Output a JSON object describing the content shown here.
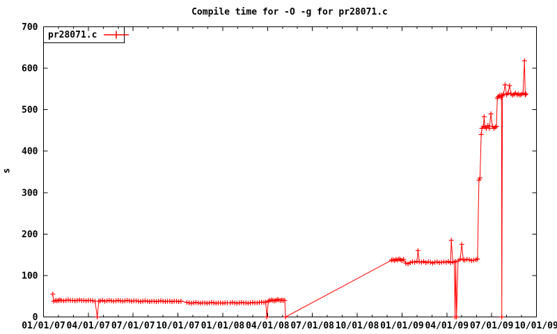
{
  "title": "Compile time for -O -g for pr28071.c",
  "legend": {
    "series_label": "pr28071.c"
  },
  "axes": {
    "y_label": "s",
    "y_ticks": [
      0,
      100,
      200,
      300,
      400,
      500,
      600,
      700
    ],
    "x_ticks": [
      "01/01/07",
      "04/01/07",
      "07/01/07",
      "10/01/07",
      "01/01/08",
      "04/01/08",
      "07/01/08",
      "10/01/08",
      "01/01/09",
      "04/01/09",
      "07/01/09",
      "10/01/09"
    ],
    "x_minor_ticks_per_interval": 2,
    "y_range": [
      0,
      700
    ],
    "grid": false
  },
  "colors": {
    "series": "#ff0000",
    "axis": "#000000",
    "text": "#000000",
    "background": "#ffffff"
  },
  "chart_data": {
    "type": "line",
    "title": "Compile time for -O -g for pr28071.c",
    "xlabel": "",
    "ylabel": "s",
    "ylim": [
      0,
      700
    ],
    "x_unit": "months since 2007-01-01 (0 = 01/01/07, 33 = 10/01/09)",
    "x_tick_labels": [
      "01/01/07",
      "04/01/07",
      "07/01/07",
      "10/01/07",
      "01/01/08",
      "04/01/08",
      "07/01/08",
      "10/01/08",
      "01/01/09",
      "04/01/09",
      "07/01/09",
      "10/01/09"
    ],
    "legend_position": "top-left-inside-box",
    "series": [
      {
        "name": "pr28071.c",
        "color": "#ff0000",
        "style": "linespoints",
        "marker": "plus",
        "points": [
          [
            0.62,
            55
          ],
          [
            0.68,
            38
          ],
          [
            0.8,
            40
          ],
          [
            0.9,
            39
          ],
          [
            1.0,
            40
          ],
          [
            1.1,
            41
          ],
          [
            1.2,
            40
          ],
          [
            1.35,
            39
          ],
          [
            1.5,
            40
          ],
          [
            1.65,
            41
          ],
          [
            1.8,
            40
          ],
          [
            1.95,
            40
          ],
          [
            2.1,
            39
          ],
          [
            2.25,
            40
          ],
          [
            2.4,
            41
          ],
          [
            2.55,
            40
          ],
          [
            2.7,
            40
          ],
          [
            2.85,
            39
          ],
          [
            3.0,
            40
          ],
          [
            3.15,
            40
          ],
          [
            3.3,
            39
          ],
          [
            3.45,
            38
          ],
          [
            3.6,
            0
          ],
          [
            3.7,
            38
          ],
          [
            3.8,
            39
          ],
          [
            3.95,
            40
          ],
          [
            4.1,
            38
          ],
          [
            4.25,
            39
          ],
          [
            4.4,
            40
          ],
          [
            4.55,
            39
          ],
          [
            4.7,
            38
          ],
          [
            4.85,
            39
          ],
          [
            5.0,
            40
          ],
          [
            5.15,
            39
          ],
          [
            5.3,
            38
          ],
          [
            5.45,
            39
          ],
          [
            5.6,
            40
          ],
          [
            5.75,
            39
          ],
          [
            5.9,
            38
          ],
          [
            6.05,
            39
          ],
          [
            6.2,
            39
          ],
          [
            6.35,
            38
          ],
          [
            6.5,
            37
          ],
          [
            6.65,
            38
          ],
          [
            6.8,
            39
          ],
          [
            6.95,
            38
          ],
          [
            7.1,
            37
          ],
          [
            7.25,
            38
          ],
          [
            7.4,
            38
          ],
          [
            7.55,
            37
          ],
          [
            7.7,
            38
          ],
          [
            7.85,
            39
          ],
          [
            8.0,
            38
          ],
          [
            8.15,
            37
          ],
          [
            8.3,
            38
          ],
          [
            8.45,
            38
          ],
          [
            8.6,
            37
          ],
          [
            8.75,
            38
          ],
          [
            8.9,
            38
          ],
          [
            9.05,
            37
          ],
          [
            9.2,
            38
          ],
          [
            9.6,
            35
          ],
          [
            9.75,
            34
          ],
          [
            9.9,
            33
          ],
          [
            10.05,
            34
          ],
          [
            10.2,
            35
          ],
          [
            10.35,
            34
          ],
          [
            10.5,
            33
          ],
          [
            10.65,
            34
          ],
          [
            10.8,
            34
          ],
          [
            10.95,
            33
          ],
          [
            11.1,
            34
          ],
          [
            11.25,
            35
          ],
          [
            11.4,
            34
          ],
          [
            11.55,
            33
          ],
          [
            11.7,
            34
          ],
          [
            11.85,
            34
          ],
          [
            12.0,
            33
          ],
          [
            12.15,
            34
          ],
          [
            12.3,
            34
          ],
          [
            12.5,
            34
          ],
          [
            12.65,
            35
          ],
          [
            12.8,
            34
          ],
          [
            12.95,
            33
          ],
          [
            13.1,
            34
          ],
          [
            13.25,
            35
          ],
          [
            13.4,
            34
          ],
          [
            13.55,
            34
          ],
          [
            13.7,
            33
          ],
          [
            13.85,
            34
          ],
          [
            14.0,
            35
          ],
          [
            14.15,
            34
          ],
          [
            14.3,
            34
          ],
          [
            14.45,
            35
          ],
          [
            14.6,
            36
          ],
          [
            14.75,
            35
          ],
          [
            14.88,
            36
          ],
          [
            14.95,
            0
          ],
          [
            15.05,
            38
          ],
          [
            15.15,
            40
          ],
          [
            15.25,
            41
          ],
          [
            15.35,
            40
          ],
          [
            15.45,
            39
          ],
          [
            15.55,
            40
          ],
          [
            15.65,
            42
          ],
          [
            15.75,
            41
          ],
          [
            15.85,
            40
          ],
          [
            15.95,
            41
          ],
          [
            16.05,
            40
          ],
          [
            16.15,
            40
          ],
          [
            16.2,
            0
          ],
          [
            23.3,
            137
          ],
          [
            23.4,
            138
          ],
          [
            23.5,
            136
          ],
          [
            23.6,
            139
          ],
          [
            23.7,
            137
          ],
          [
            23.8,
            140
          ],
          [
            23.9,
            138
          ],
          [
            24.0,
            136
          ],
          [
            24.1,
            139
          ],
          [
            24.25,
            130
          ],
          [
            24.4,
            128
          ],
          [
            24.55,
            131
          ],
          [
            24.7,
            133
          ],
          [
            24.85,
            132
          ],
          [
            25.0,
            134
          ],
          [
            25.07,
            160
          ],
          [
            25.15,
            133
          ],
          [
            25.3,
            132
          ],
          [
            25.45,
            134
          ],
          [
            25.6,
            131
          ],
          [
            25.75,
            133
          ],
          [
            25.9,
            132
          ],
          [
            26.05,
            130
          ],
          [
            26.2,
            132
          ],
          [
            26.35,
            133
          ],
          [
            26.5,
            131
          ],
          [
            26.65,
            132
          ],
          [
            26.8,
            133
          ],
          [
            26.95,
            132
          ],
          [
            27.1,
            134
          ],
          [
            27.25,
            131
          ],
          [
            27.3,
            185
          ],
          [
            27.4,
            133
          ],
          [
            27.5,
            132
          ],
          [
            27.55,
            0
          ],
          [
            27.6,
            134
          ],
          [
            27.65,
            0
          ],
          [
            27.75,
            135
          ],
          [
            27.9,
            140
          ],
          [
            28.0,
            175
          ],
          [
            28.1,
            138
          ],
          [
            28.2,
            137
          ],
          [
            28.35,
            139
          ],
          [
            28.5,
            138
          ],
          [
            28.65,
            136
          ],
          [
            28.8,
            137
          ],
          [
            28.95,
            138
          ],
          [
            29.05,
            140
          ],
          [
            29.15,
            330
          ],
          [
            29.22,
            335
          ],
          [
            29.3,
            440
          ],
          [
            29.35,
            455
          ],
          [
            29.45,
            460
          ],
          [
            29.5,
            483
          ],
          [
            29.55,
            458
          ],
          [
            29.65,
            455
          ],
          [
            29.75,
            462
          ],
          [
            29.85,
            455
          ],
          [
            29.95,
            490
          ],
          [
            30.05,
            460
          ],
          [
            30.15,
            455
          ],
          [
            30.25,
            458
          ],
          [
            30.32,
            460
          ],
          [
            30.38,
            528
          ],
          [
            30.45,
            532
          ],
          [
            30.55,
            535
          ],
          [
            30.62,
            530
          ],
          [
            30.66,
            535
          ],
          [
            30.68,
            0
          ],
          [
            30.72,
            533
          ],
          [
            30.8,
            538
          ],
          [
            30.9,
            560
          ],
          [
            31.0,
            536
          ],
          [
            31.1,
            540
          ],
          [
            31.2,
            558
          ],
          [
            31.3,
            538
          ],
          [
            31.4,
            535
          ],
          [
            31.5,
            537
          ],
          [
            31.6,
            540
          ],
          [
            31.7,
            536
          ],
          [
            31.8,
            538
          ],
          [
            31.9,
            535
          ],
          [
            32.0,
            537
          ],
          [
            32.1,
            540
          ],
          [
            32.2,
            618
          ],
          [
            32.25,
            536
          ],
          [
            32.3,
            538
          ]
        ]
      }
    ]
  }
}
